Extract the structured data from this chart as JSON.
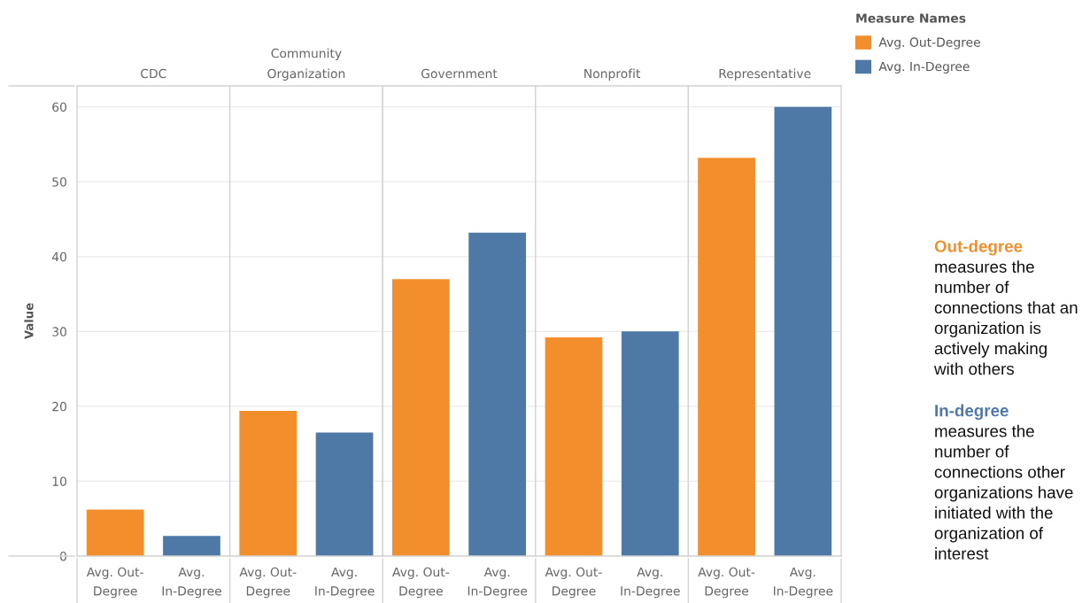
{
  "chart_data": [
    {
      "type": "bar",
      "title": "CDC",
      "ylabel": "Value",
      "categories": [
        "Avg. Out-\nDegree",
        "Avg.\nIn-Degree"
      ],
      "series": [
        {
          "color": "#f28e2b",
          "values": [
            6.2,
            null
          ]
        },
        {
          "color": "#4e79a7",
          "values": [
            null,
            2.7
          ]
        }
      ],
      "stacked": true,
      "ylim": [
        0,
        62.8
      ],
      "yticks": [
        0,
        10,
        20,
        30,
        40,
        50,
        60
      ],
      "grid": "y"
    },
    {
      "type": "bar",
      "title": "Community\nOrganization",
      "categories": [
        "Avg. Out-\nDegree",
        "Avg.\nIn-Degree"
      ],
      "series": [
        {
          "color": "#f28e2b",
          "values": [
            19.4,
            null
          ]
        },
        {
          "color": "#4e79a7",
          "values": [
            null,
            16.5
          ]
        }
      ],
      "stacked": true,
      "ylim": [
        0,
        62.8
      ],
      "yticks": [
        0,
        10,
        20,
        30,
        40,
        50,
        60
      ],
      "grid": "y",
      "tick_labels": "x"
    },
    {
      "type": "bar",
      "title": "Government",
      "categories": [
        "Avg. Out-\nDegree",
        "Avg.\nIn-Degree"
      ],
      "series": [
        {
          "color": "#f28e2b",
          "values": [
            37.0,
            null
          ]
        },
        {
          "color": "#4e79a7",
          "values": [
            null,
            43.2
          ]
        }
      ],
      "stacked": true,
      "ylim": [
        0,
        62.8
      ],
      "yticks": [
        0,
        10,
        20,
        30,
        40,
        50,
        60
      ],
      "grid": "y",
      "tick_labels": "x"
    },
    {
      "type": "bar",
      "title": "Nonprofit",
      "categories": [
        "Avg. Out-\nDegree",
        "Avg.\nIn-Degree"
      ],
      "series": [
        {
          "color": "#f28e2b",
          "values": [
            29.2,
            null
          ]
        },
        {
          "color": "#4e79a7",
          "values": [
            null,
            30.0
          ]
        }
      ],
      "stacked": true,
      "ylim": [
        0,
        62.8
      ],
      "yticks": [
        0,
        10,
        20,
        30,
        40,
        50,
        60
      ],
      "grid": "y",
      "tick_labels": "x"
    },
    {
      "type": "bar",
      "title": "Representative",
      "categories": [
        "Avg. Out-\nDegree",
        "Avg.\nIn-Degree"
      ],
      "series": [
        {
          "name": "Avg. Out-Degree",
          "color": "#f28e2b",
          "values": [
            53.2,
            null
          ]
        },
        {
          "name": "Avg. In-Degree",
          "color": "#4e79a7",
          "values": [
            null,
            60.0
          ]
        }
      ],
      "stacked": true,
      "ylim": [
        0,
        62.8
      ],
      "yticks": [
        0,
        10,
        20,
        30,
        40,
        50,
        60
      ],
      "grid": "y",
      "tick_labels": "x",
      "legend": "top right",
      "legend_title": "Measure Names"
    },
    {
      "type": "other",
      "annotations": [
        "Out-degree",
        "measures the\nnumber of\nconnections that an\norganization is\nactively making\nwith others",
        "In-degree",
        "measures the\nnumber of\nconnections other\norganizations have\ninitiated with the\norganization of\ninterest"
      ]
    }
  ]
}
